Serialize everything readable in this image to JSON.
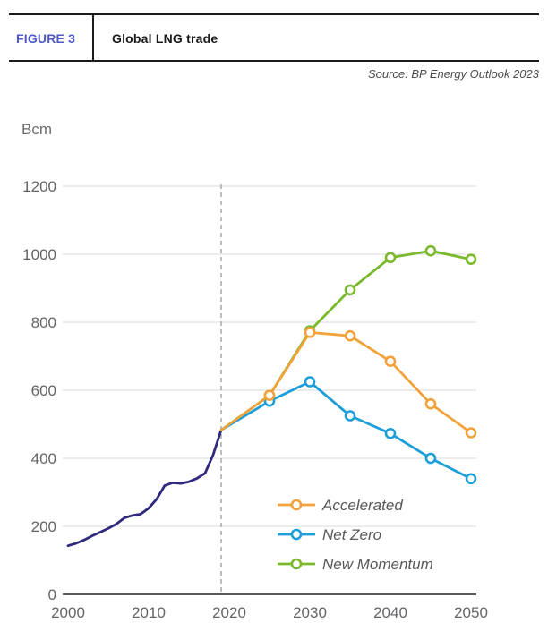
{
  "header": {
    "figure_label": "FIGURE 3",
    "title": "Global LNG trade",
    "source": "Source: BP Energy Outlook 2023",
    "accent_color": "#4f5ac8",
    "rule_color": "#1a1a1a"
  },
  "chart_data": {
    "type": "line",
    "title": "Global LNG trade",
    "ylabel": "Bcm",
    "xlabel": "",
    "xlim": [
      2000,
      2050
    ],
    "ylim": [
      0,
      1200
    ],
    "x_ticks": [
      2000,
      2010,
      2020,
      2030,
      2040,
      2050
    ],
    "y_ticks": [
      0,
      200,
      400,
      600,
      800,
      1000,
      1200
    ],
    "grid": "horizontal",
    "divider_year": 2019,
    "legend_position": "inside-bottom-right",
    "legend": [
      "Accelerated",
      "Net Zero",
      "New Momentum"
    ],
    "draw_order": [
      "History",
      "New Momentum",
      "Net Zero",
      "Accelerated"
    ],
    "series": [
      {
        "name": "History",
        "color": "#2f2a7d",
        "marker": false,
        "points": [
          [
            2000,
            143
          ],
          [
            2001,
            150
          ],
          [
            2002,
            160
          ],
          [
            2003,
            172
          ],
          [
            2004,
            183
          ],
          [
            2005,
            194
          ],
          [
            2006,
            207
          ],
          [
            2007,
            225
          ],
          [
            2008,
            232
          ],
          [
            2009,
            236
          ],
          [
            2010,
            253
          ],
          [
            2011,
            280
          ],
          [
            2012,
            320
          ],
          [
            2013,
            328
          ],
          [
            2014,
            326
          ],
          [
            2015,
            331
          ],
          [
            2016,
            341
          ],
          [
            2017,
            356
          ],
          [
            2018,
            410
          ],
          [
            2019,
            483
          ]
        ]
      },
      {
        "name": "Accelerated",
        "color": "#f2a23b",
        "marker": true,
        "points": [
          [
            2019,
            483
          ],
          [
            2025,
            585
          ],
          [
            2030,
            770
          ],
          [
            2035,
            760
          ],
          [
            2040,
            685
          ],
          [
            2045,
            560
          ],
          [
            2050,
            475
          ]
        ]
      },
      {
        "name": "Net Zero",
        "color": "#1e9ed9",
        "marker": true,
        "points": [
          [
            2019,
            483
          ],
          [
            2025,
            568
          ],
          [
            2030,
            625
          ],
          [
            2035,
            525
          ],
          [
            2040,
            473
          ],
          [
            2045,
            400
          ],
          [
            2050,
            340
          ]
        ]
      },
      {
        "name": "New Momentum",
        "color": "#7ab82c",
        "marker": true,
        "points": [
          [
            2019,
            483
          ],
          [
            2025,
            585
          ],
          [
            2030,
            775
          ],
          [
            2035,
            895
          ],
          [
            2040,
            990
          ],
          [
            2045,
            1010
          ],
          [
            2050,
            985
          ]
        ]
      }
    ],
    "style": {
      "gridline_color": "#d9d9d9",
      "axis_color": "#58595b",
      "tick_label_color": "#636569",
      "unit_label_color": "#6d6e71",
      "divider_color": "#a7a9ac",
      "legend_text_color": "#58595b"
    }
  }
}
